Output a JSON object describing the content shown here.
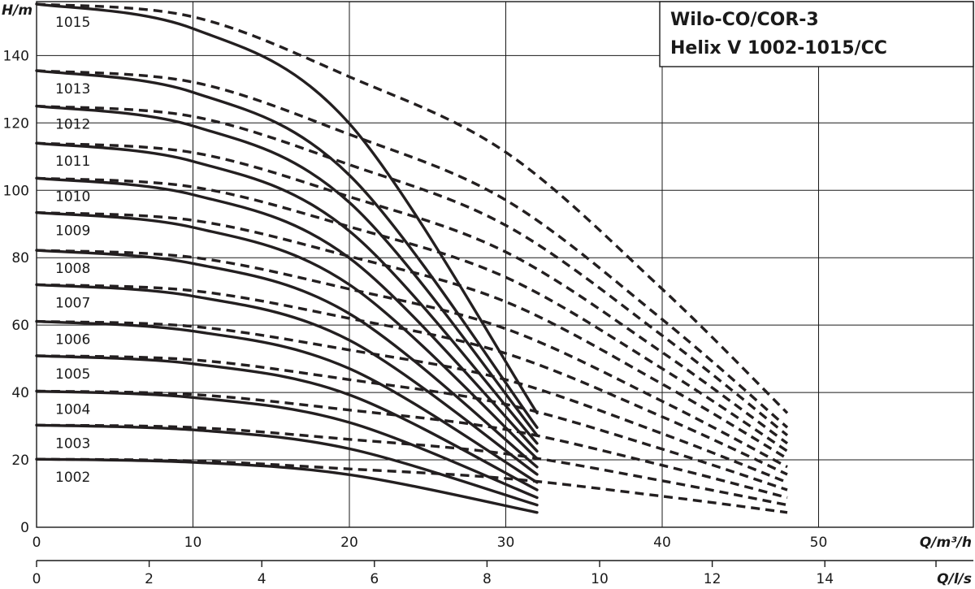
{
  "chart_data": {
    "type": "line",
    "title": [
      "Wilo-CO/COR-3",
      "Helix V 1002-1015/CC"
    ],
    "ylabel": "H/m",
    "xlabel": "Q/m³/h",
    "x2label": "Q/l/s",
    "xlim": [
      0,
      59.3
    ],
    "ylim": [
      0,
      156
    ],
    "x_ticks": [
      0,
      10,
      20,
      30,
      40,
      50
    ],
    "x_tick_labels": [
      "0",
      "10",
      "20",
      "30",
      "40",
      "50"
    ],
    "y_ticks": [
      0,
      20,
      40,
      60,
      80,
      100,
      120,
      140
    ],
    "y_tick_labels": [
      "0",
      "20",
      "40",
      "60",
      "80",
      "100",
      "120",
      "140"
    ],
    "x2_ticks": [
      0,
      2,
      4,
      6,
      8,
      10,
      12,
      14
    ],
    "x2_tick_labels": [
      "0",
      "2",
      "4",
      "6",
      "8",
      "10",
      "12",
      "14"
    ],
    "grid": true,
    "series": [
      {
        "name": "1002",
        "solid": {
          "x": [
            0,
            10,
            20,
            32
          ],
          "y": [
            20.2,
            19.3,
            15.6,
            4.4
          ]
        },
        "dashed": {
          "x": [
            0,
            10,
            20,
            30,
            40,
            48
          ],
          "y": [
            20.2,
            19.7,
            17.3,
            14.5,
            9.2,
            4.4
          ]
        }
      },
      {
        "name": "1003",
        "solid": {
          "x": [
            0,
            10,
            20,
            32
          ],
          "y": [
            30.3,
            28.9,
            23.3,
            6.6
          ]
        },
        "dashed": {
          "x": [
            0,
            10,
            20,
            30,
            40,
            48
          ],
          "y": [
            30.3,
            29.6,
            26.1,
            21.8,
            13.8,
            6.6
          ]
        }
      },
      {
        "name": "1004",
        "solid": {
          "x": [
            0,
            10,
            20,
            32
          ],
          "y": [
            40.4,
            38.5,
            31.1,
            8.8
          ]
        },
        "dashed": {
          "x": [
            0,
            10,
            20,
            30,
            40,
            48
          ],
          "y": [
            40.4,
            39.4,
            34.8,
            29.0,
            18.4,
            8.8
          ]
        }
      },
      {
        "name": "1005",
        "solid": {
          "x": [
            0,
            10,
            20,
            32
          ],
          "y": [
            50.9,
            48.5,
            39.3,
            11.1
          ]
        },
        "dashed": {
          "x": [
            0,
            10,
            20,
            30,
            40,
            48
          ],
          "y": [
            50.9,
            49.7,
            43.8,
            36.5,
            23.2,
            11.1
          ]
        }
      },
      {
        "name": "1006",
        "solid": {
          "x": [
            0,
            10,
            20,
            32
          ],
          "y": [
            61.1,
            58.2,
            47.1,
            13.3
          ]
        },
        "dashed": {
          "x": [
            0,
            10,
            20,
            30,
            40,
            48
          ],
          "y": [
            61.1,
            59.6,
            52.6,
            43.8,
            27.8,
            13.3
          ]
        }
      },
      {
        "name": "1007",
        "solid": {
          "x": [
            0,
            10,
            20,
            32
          ],
          "y": [
            72.0,
            68.6,
            55.5,
            15.7
          ]
        },
        "dashed": {
          "x": [
            0,
            10,
            20,
            30,
            40,
            48
          ],
          "y": [
            72.0,
            70.2,
            62.0,
            51.6,
            32.8,
            15.7
          ]
        }
      },
      {
        "name": "1008",
        "solid": {
          "x": [
            0,
            10,
            20,
            32
          ],
          "y": [
            82.2,
            78.3,
            63.4,
            17.9
          ]
        },
        "dashed": {
          "x": [
            0,
            10,
            20,
            30,
            40,
            48
          ],
          "y": [
            82.2,
            80.1,
            70.7,
            58.9,
            37.4,
            17.9
          ]
        }
      },
      {
        "name": "1009",
        "solid": {
          "x": [
            0,
            10,
            20,
            32
          ],
          "y": [
            93.4,
            89.0,
            72.0,
            20.4
          ]
        },
        "dashed": {
          "x": [
            0,
            10,
            20,
            30,
            40,
            48
          ],
          "y": [
            93.4,
            91.1,
            80.4,
            66.9,
            42.5,
            20.4
          ]
        }
      },
      {
        "name": "1010",
        "solid": {
          "x": [
            0,
            10,
            20,
            32
          ],
          "y": [
            103.6,
            98.7,
            79.9,
            22.6
          ]
        },
        "dashed": {
          "x": [
            0,
            10,
            20,
            30,
            40,
            48
          ],
          "y": [
            103.6,
            101.0,
            89.2,
            74.2,
            47.1,
            22.6
          ]
        }
      },
      {
        "name": "1011",
        "solid": {
          "x": [
            0,
            10,
            20,
            32
          ],
          "y": [
            114.0,
            108.6,
            87.9,
            24.9
          ]
        },
        "dashed": {
          "x": [
            0,
            10,
            20,
            30,
            40,
            48
          ],
          "y": [
            114.0,
            111.2,
            98.1,
            81.7,
            51.9,
            24.9
          ]
        }
      },
      {
        "name": "1012",
        "solid": {
          "x": [
            0,
            10,
            20,
            32
          ],
          "y": [
            125.0,
            119.1,
            96.4,
            27.3
          ]
        },
        "dashed": {
          "x": [
            0,
            10,
            20,
            30,
            40,
            48
          ],
          "y": [
            125.0,
            121.9,
            107.6,
            89.6,
            56.9,
            27.3
          ]
        }
      },
      {
        "name": "1013",
        "solid": {
          "x": [
            0,
            10,
            20,
            32
          ],
          "y": [
            135.5,
            129.1,
            104.5,
            29.6
          ]
        },
        "dashed": {
          "x": [
            0,
            10,
            20,
            30,
            40,
            48
          ],
          "y": [
            135.5,
            132.1,
            116.6,
            97.1,
            61.7,
            29.6
          ]
        }
      },
      {
        "name": "1015",
        "solid": {
          "x": [
            0,
            10,
            20,
            32
          ],
          "y": [
            155.3,
            148.0,
            119.8,
            33.9
          ]
        },
        "dashed": {
          "x": [
            0,
            10,
            20,
            30,
            40,
            48
          ],
          "y": [
            155.3,
            151.5,
            133.7,
            111.3,
            70.7,
            33.9
          ]
        }
      }
    ]
  }
}
